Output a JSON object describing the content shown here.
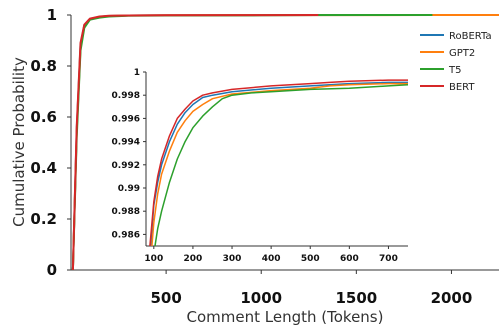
{
  "chart_data": [
    {
      "id": "main",
      "type": "line",
      "xlabel": "Comment Length (Tokens)",
      "ylabel": "Cumulative Probability",
      "xlim": [
        0,
        2250
      ],
      "ylim": [
        0,
        1.0
      ],
      "xticks": [
        500,
        1000,
        1500,
        2000
      ],
      "yticks": [
        0,
        0.2,
        0.4,
        0.6,
        0.8,
        1
      ],
      "ytick_labels": [
        "0",
        "0.2",
        "0.4",
        "0.6",
        "0.8",
        "1"
      ],
      "legend": {
        "position": "right"
      },
      "series": [
        {
          "name": "RoBERTa",
          "color": "#1f77b4",
          "x": [
            10,
            30,
            50,
            70,
            100,
            150,
            200,
            300,
            500,
            1000,
            1600,
            1900,
            2250
          ],
          "y": [
            0.0,
            0.55,
            0.88,
            0.96,
            0.985,
            0.993,
            0.996,
            0.998,
            0.999,
            0.9995,
            1.0,
            1.0,
            1.0
          ]
        },
        {
          "name": "GPT2",
          "color": "#ff7f0e",
          "x": [
            10,
            30,
            50,
            70,
            100,
            150,
            200,
            300,
            500,
            1000,
            1600,
            1900,
            2250
          ],
          "y": [
            0.0,
            0.54,
            0.87,
            0.955,
            0.984,
            0.992,
            0.996,
            0.998,
            0.999,
            0.9995,
            0.9998,
            1.0,
            1.0
          ]
        },
        {
          "name": "T5",
          "color": "#2ca02c",
          "x": [
            10,
            30,
            50,
            70,
            100,
            150,
            200,
            300,
            500,
            1000,
            1300,
            1900
          ],
          "y": [
            0.0,
            0.52,
            0.86,
            0.95,
            0.982,
            0.99,
            0.994,
            0.997,
            0.998,
            0.999,
            1.0,
            1.0
          ]
        },
        {
          "name": "BERT",
          "color": "#d62728",
          "x": [
            10,
            30,
            50,
            70,
            100,
            150,
            200,
            300,
            500,
            1000,
            1300
          ],
          "y": [
            0.0,
            0.56,
            0.89,
            0.962,
            0.986,
            0.994,
            0.997,
            0.998,
            0.999,
            0.9995,
            1.0
          ]
        }
      ]
    },
    {
      "id": "inset",
      "type": "line",
      "xlim": [
        80,
        750
      ],
      "ylim": [
        0.985,
        1.0
      ],
      "xticks": [
        100,
        200,
        300,
        400,
        500,
        600,
        700
      ],
      "yticks": [
        0.986,
        0.988,
        0.99,
        0.992,
        0.994,
        0.996,
        0.998,
        1
      ],
      "ytick_labels": [
        "0.986",
        "0.988",
        "0.99",
        "0.992",
        "0.994",
        "0.996",
        "0.998",
        "1"
      ],
      "series": [
        {
          "name": "RoBERTa",
          "color": "#1f77b4",
          "x": [
            92,
            100,
            110,
            120,
            140,
            160,
            180,
            200,
            225,
            250,
            300,
            400,
            500,
            550,
            600,
            700,
            750
          ],
          "y": [
            0.985,
            0.9885,
            0.9905,
            0.992,
            0.994,
            0.9955,
            0.9965,
            0.9972,
            0.9978,
            0.998,
            0.9983,
            0.9986,
            0.9988,
            0.9989,
            0.999,
            0.9991,
            0.9991
          ]
        },
        {
          "name": "GPT2",
          "color": "#ff7f0e",
          "x": [
            95,
            100,
            110,
            120,
            140,
            160,
            180,
            200,
            225,
            250,
            300,
            400,
            500,
            550,
            600,
            700,
            750
          ],
          "y": [
            0.985,
            0.987,
            0.9895,
            0.9912,
            0.9932,
            0.9948,
            0.9958,
            0.9966,
            0.9972,
            0.9977,
            0.9981,
            0.9984,
            0.9986,
            0.9988,
            0.9989,
            0.999,
            0.999
          ]
        },
        {
          "name": "T5",
          "color": "#2ca02c",
          "x": [
            103,
            110,
            120,
            140,
            160,
            180,
            200,
            225,
            250,
            275,
            300,
            350,
            400,
            500,
            600,
            700,
            750
          ],
          "y": [
            0.985,
            0.9865,
            0.988,
            0.9905,
            0.9925,
            0.994,
            0.9952,
            0.9962,
            0.997,
            0.9977,
            0.998,
            0.9982,
            0.9983,
            0.9985,
            0.9986,
            0.9988,
            0.9989
          ]
        },
        {
          "name": "BERT",
          "color": "#d62728",
          "x": [
            90,
            100,
            110,
            120,
            140,
            160,
            180,
            200,
            225,
            250,
            300,
            400,
            500,
            550,
            600,
            700,
            750
          ],
          "y": [
            0.985,
            0.9888,
            0.991,
            0.9925,
            0.9945,
            0.996,
            0.9968,
            0.9975,
            0.998,
            0.9982,
            0.9985,
            0.9988,
            0.999,
            0.9991,
            0.9992,
            0.9993,
            0.9993
          ]
        }
      ]
    }
  ]
}
